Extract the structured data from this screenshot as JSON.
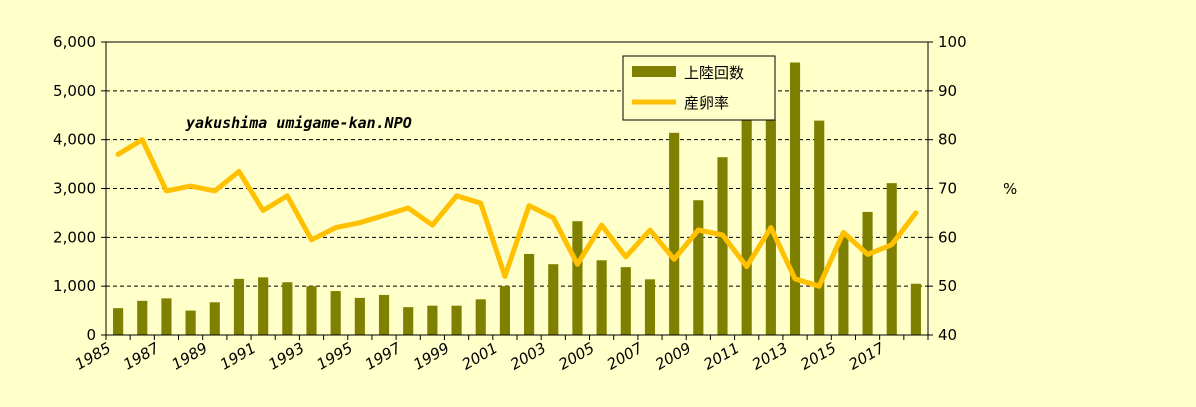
{
  "chart_data": {
    "type": "bar+line",
    "x": [
      1985,
      1986,
      1987,
      1988,
      1989,
      1990,
      1991,
      1992,
      1993,
      1994,
      1995,
      1996,
      1997,
      1998,
      1999,
      2000,
      2001,
      2002,
      2003,
      2004,
      2005,
      2006,
      2007,
      2008,
      2009,
      2010,
      2011,
      2012,
      2013,
      2014,
      2015,
      2016,
      2017,
      2018
    ],
    "x_tick_labels": [
      "1985",
      "1987",
      "1989",
      "1991",
      "1993",
      "1995",
      "1997",
      "1999",
      "2001",
      "2003",
      "2005",
      "2007",
      "2009",
      "2011",
      "2013",
      "2015",
      "2017"
    ],
    "series": [
      {
        "name": "上陸回数",
        "type": "bar",
        "axis": "left",
        "color": "#808000",
        "values": [
          550,
          700,
          750,
          500,
          670,
          1150,
          1180,
          1080,
          1000,
          900,
          760,
          820,
          570,
          600,
          600,
          730,
          1000,
          1660,
          1450,
          2330,
          1530,
          1390,
          1140,
          4140,
          2760,
          3640,
          4400,
          4400,
          5580,
          4390,
          2030,
          2520,
          3110,
          1050
        ]
      },
      {
        "name": "産卵率",
        "type": "line",
        "axis": "right",
        "color": "#ffc000",
        "values": [
          77,
          80,
          69.5,
          70.5,
          69.5,
          73.5,
          65.5,
          68.5,
          59.5,
          62,
          63,
          64.5,
          66,
          62.5,
          68.5,
          67,
          52,
          66.5,
          64,
          54.5,
          62.5,
          56,
          61.5,
          55.5,
          61.5,
          60.5,
          54,
          62,
          51.5,
          50,
          61,
          56.5,
          58.5,
          65
        ]
      }
    ],
    "y_left": {
      "ticks": [
        "0",
        "1,000",
        "2,000",
        "3,000",
        "4,000",
        "5,000",
        "6,000"
      ],
      "ylim": [
        0,
        6000
      ]
    },
    "y_right": {
      "ticks": [
        "40",
        "50",
        "60",
        "70",
        "80",
        "90",
        "100"
      ],
      "ylim": [
        40,
        100
      ],
      "label": "%"
    },
    "annotation": "yakushima umigame-kan.NPO",
    "legend_position": "top-right",
    "grid": "horizontal dashed"
  },
  "colors": {
    "background": "#ffffc9",
    "bar": "#808000",
    "line": "#ffc000",
    "grid": "#000000"
  }
}
